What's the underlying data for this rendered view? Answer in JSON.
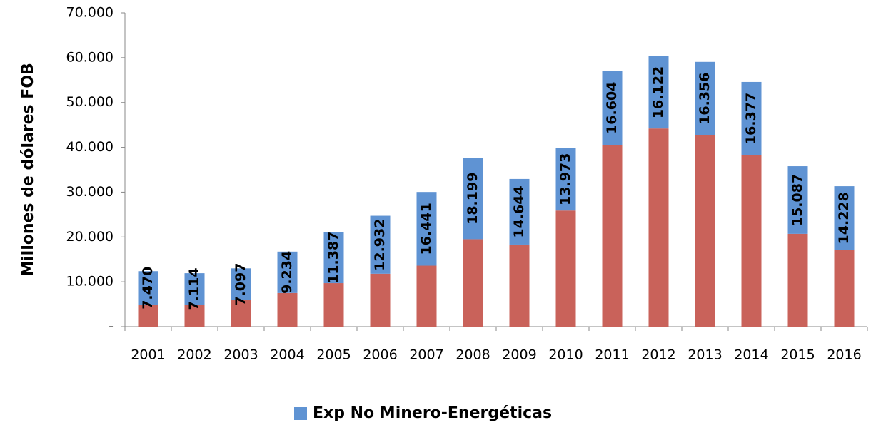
{
  "chart_data": {
    "type": "bar",
    "stacked": true,
    "y_label": "Millones de dólares FOB",
    "categories": [
      "2001",
      "2002",
      "2003",
      "2004",
      "2005",
      "2006",
      "2007",
      "2008",
      "2009",
      "2010",
      "2011",
      "2012",
      "2013",
      "2014",
      "2015",
      "2016"
    ],
    "series": [
      {
        "color": "#c9625a",
        "values": [
          4900,
          4800,
          5900,
          7500,
          9700,
          11800,
          13600,
          19500,
          18300,
          25900,
          40500,
          44200,
          42700,
          38200,
          20700,
          17100
        ]
      },
      {
        "name": "Exp No Minero-Energéticas",
        "color": "#5f93d3",
        "values": [
          7470,
          7114,
          7097,
          9234,
          11387,
          12932,
          16441,
          18199,
          14644,
          13973,
          16604,
          16122,
          16356,
          16377,
          15087,
          14228
        ],
        "value_labels": [
          "7.470",
          "7.114",
          "7.097",
          "9.234",
          "11.387",
          "12.932",
          "16.441",
          "18.199",
          "14.644",
          "13.973",
          "16.604",
          "16.122",
          "16.356",
          "16.377",
          "15.087",
          "14.228"
        ]
      }
    ],
    "ylim": [
      0,
      70000
    ],
    "yticks": [
      {
        "value": 0,
        "label": "-"
      },
      {
        "value": 10000,
        "label": "10.000"
      },
      {
        "value": 20000,
        "label": "20.000"
      },
      {
        "value": 30000,
        "label": "30.000"
      },
      {
        "value": 40000,
        "label": "40.000"
      },
      {
        "value": 50000,
        "label": "50.000"
      },
      {
        "value": 60000,
        "label": "60.000"
      },
      {
        "value": 70000,
        "label": "70.000"
      }
    ],
    "grid": false,
    "legend": "bottom"
  }
}
